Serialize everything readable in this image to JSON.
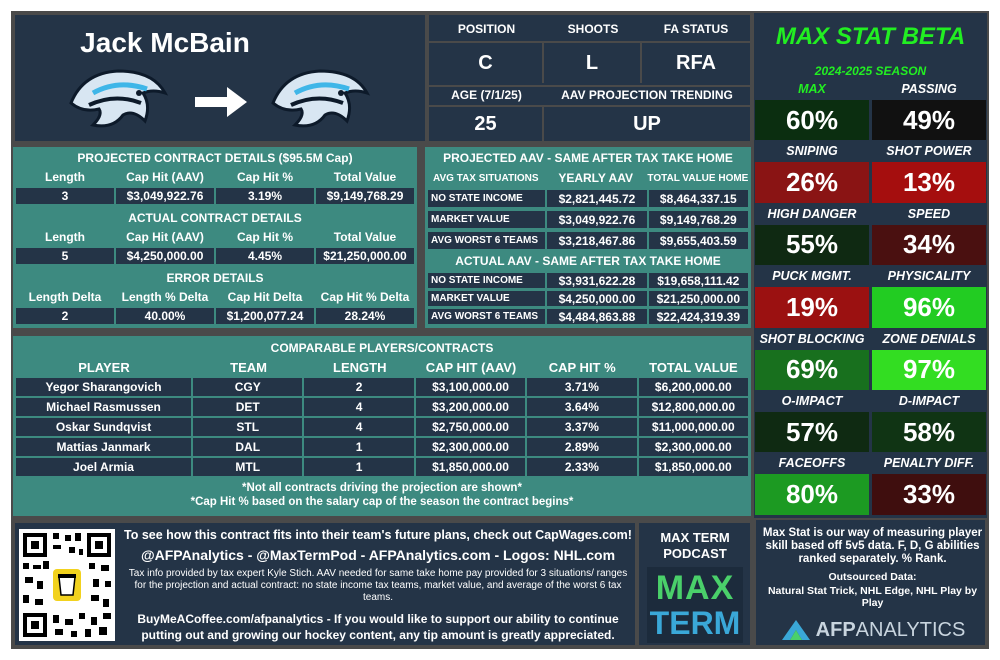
{
  "player": {
    "name": "Jack McBain"
  },
  "info": {
    "position_label": "POSITION",
    "position": "C",
    "shoots_label": "SHOOTS",
    "shoots": "L",
    "fa_label": "FA STATUS",
    "fa": "RFA",
    "age_label": "AGE (7/1/25)",
    "age": "25",
    "trend_label": "AAV PROJECTION TRENDING",
    "trend": "UP"
  },
  "projected": {
    "title": "PROJECTED CONTRACT DETAILS ($95.5M Cap)",
    "headers": [
      "Length",
      "Cap Hit (AAV)",
      "Cap Hit %",
      "Total Value"
    ],
    "values": [
      "3",
      "$3,049,922.76",
      "3.19%",
      "$9,149,768.29"
    ]
  },
  "actual": {
    "title": "ACTUAL CONTRACT DETAILS",
    "headers": [
      "Length",
      "Cap Hit (AAV)",
      "Cap Hit %",
      "Total Value"
    ],
    "values": [
      "5",
      "$4,250,000.00",
      "4.45%",
      "$21,250,000.00"
    ]
  },
  "error": {
    "title": "ERROR DETAILS",
    "headers": [
      "Length Delta",
      "Length % Delta",
      "Cap Hit Delta",
      "Cap Hit % Delta"
    ],
    "values": [
      "2",
      "40.00%",
      "$1,200,077.24",
      "28.24%"
    ]
  },
  "aav_projected": {
    "title": "PROJECTED AAV - SAME AFTER TAX TAKE HOME",
    "headers": [
      "AVG TAX SITUATIONS",
      "YEARLY AAV",
      "TOTAL VALUE HOME"
    ],
    "rows": [
      [
        "NO STATE INCOME",
        "$2,821,445.72",
        "$8,464,337.15"
      ],
      [
        "MARKET VALUE",
        "$3,049,922.76",
        "$9,149,768.29"
      ],
      [
        "AVG WORST 6 TEAMS",
        "$3,218,467.86",
        "$9,655,403.59"
      ]
    ]
  },
  "aav_actual": {
    "title": "ACTUAL AAV - SAME AFTER TAX TAKE HOME",
    "rows": [
      [
        "NO STATE INCOME",
        "$3,931,622.28",
        "$19,658,111.42"
      ],
      [
        "MARKET VALUE",
        "$4,250,000.00",
        "$21,250,000.00"
      ],
      [
        "AVG WORST 6 TEAMS",
        "$4,484,863.88",
        "$22,424,319.39"
      ]
    ]
  },
  "comparables": {
    "title": "COMPARABLE PLAYERS/CONTRACTS",
    "headers": [
      "PLAYER",
      "TEAM",
      "LENGTH",
      "CAP HIT (AAV)",
      "CAP HIT %",
      "TOTAL VALUE"
    ],
    "rows": [
      [
        "Yegor Sharangovich",
        "CGY",
        "2",
        "$3,100,000.00",
        "3.71%",
        "$6,200,000.00"
      ],
      [
        "Michael Rasmussen",
        "DET",
        "4",
        "$3,200,000.00",
        "3.64%",
        "$12,800,000.00"
      ],
      [
        "Oskar Sundqvist",
        "STL",
        "4",
        "$2,750,000.00",
        "3.37%",
        "$11,000,000.00"
      ],
      [
        "Mattias Janmark",
        "DAL",
        "1",
        "$2,300,000.00",
        "2.89%",
        "$2,300,000.00"
      ],
      [
        "Joel Armia",
        "MTL",
        "1",
        "$1,850,000.00",
        "2.33%",
        "$1,850,000.00"
      ]
    ],
    "note1": "*Not all contracts driving the projection are shown*",
    "note2": "*Cap Hit % based on the salary cap of the season the contract begins*"
  },
  "maxstat": {
    "title": "MAX STAT BETA",
    "season": "2024-2025 SEASON",
    "stats": [
      {
        "label": "MAX",
        "value": "60%",
        "color": "#0b2e10",
        "label_color": "#22ee22"
      },
      {
        "label": "PASSING",
        "value": "49%",
        "color": "#111111",
        "label_color": "#ffffff"
      },
      {
        "label": "SNIPING",
        "value": "26%",
        "color": "#8a1414",
        "label_color": "#ffffff"
      },
      {
        "label": "SHOT POWER",
        "value": "13%",
        "color": "#a50e0e",
        "label_color": "#ffffff"
      },
      {
        "label": "HIGH DANGER",
        "value": "55%",
        "color": "#0f2912",
        "label_color": "#ffffff"
      },
      {
        "label": "SPEED",
        "value": "34%",
        "color": "#4a1010",
        "label_color": "#ffffff"
      },
      {
        "label": "PUCK MGMT.",
        "value": "19%",
        "color": "#9b1111",
        "label_color": "#ffffff"
      },
      {
        "label": "PHYSICALITY",
        "value": "96%",
        "color": "#22cc22",
        "label_color": "#ffffff"
      },
      {
        "label": "SHOT BLOCKING",
        "value": "69%",
        "color": "#18701e",
        "label_color": "#ffffff"
      },
      {
        "label": "ZONE DENIALS",
        "value": "97%",
        "color": "#33dd22",
        "label_color": "#ffffff"
      },
      {
        "label": "O-IMPACT",
        "value": "57%",
        "color": "#0f2a12",
        "label_color": "#ffffff"
      },
      {
        "label": "D-IMPACT",
        "value": "58%",
        "color": "#103414",
        "label_color": "#ffffff"
      },
      {
        "label": "FACEOFFS",
        "value": "80%",
        "color": "#1c9a22",
        "label_color": "#ffffff"
      },
      {
        "label": "PENALTY DIFF.",
        "value": "33%",
        "color": "#3f0e0e",
        "label_color": "#ffffff"
      }
    ],
    "desc": "Max Stat is our way of measuring player skill based off 5v5 data. F, D, G abilities ranked separately. % Rank.",
    "sources_label": "Outsourced Data:",
    "sources": "Natural Stat Trick, NHL Edge, NHL Play by Play"
  },
  "footer": {
    "line1": "To see how this contract fits into their team's future plans, check out CapWages.com!",
    "line2": "@AFPAnalytics - @MaxTermPod - AFPAnalytics.com - Logos: NHL.com",
    "line3": "Tax info provided by tax expert Kyle Stich. AAV needed for same take home pay provided for 3 situations/ ranges for the projection and actual contract: no state income tax teams, market value, and average of the worst 6 tax teams.",
    "line4": "BuyMeACoffee.com/afpanalytics - If you would like to support our ability to continue putting out and growing our hockey content, any tip amount is greatly appreciated.",
    "podcast_title": "MAX TERM PODCAST",
    "podcast_logo_top": "MAX",
    "podcast_logo_bottom": "TERM",
    "afp_a": "AFP",
    "afp_b": "ANALYTICS"
  }
}
